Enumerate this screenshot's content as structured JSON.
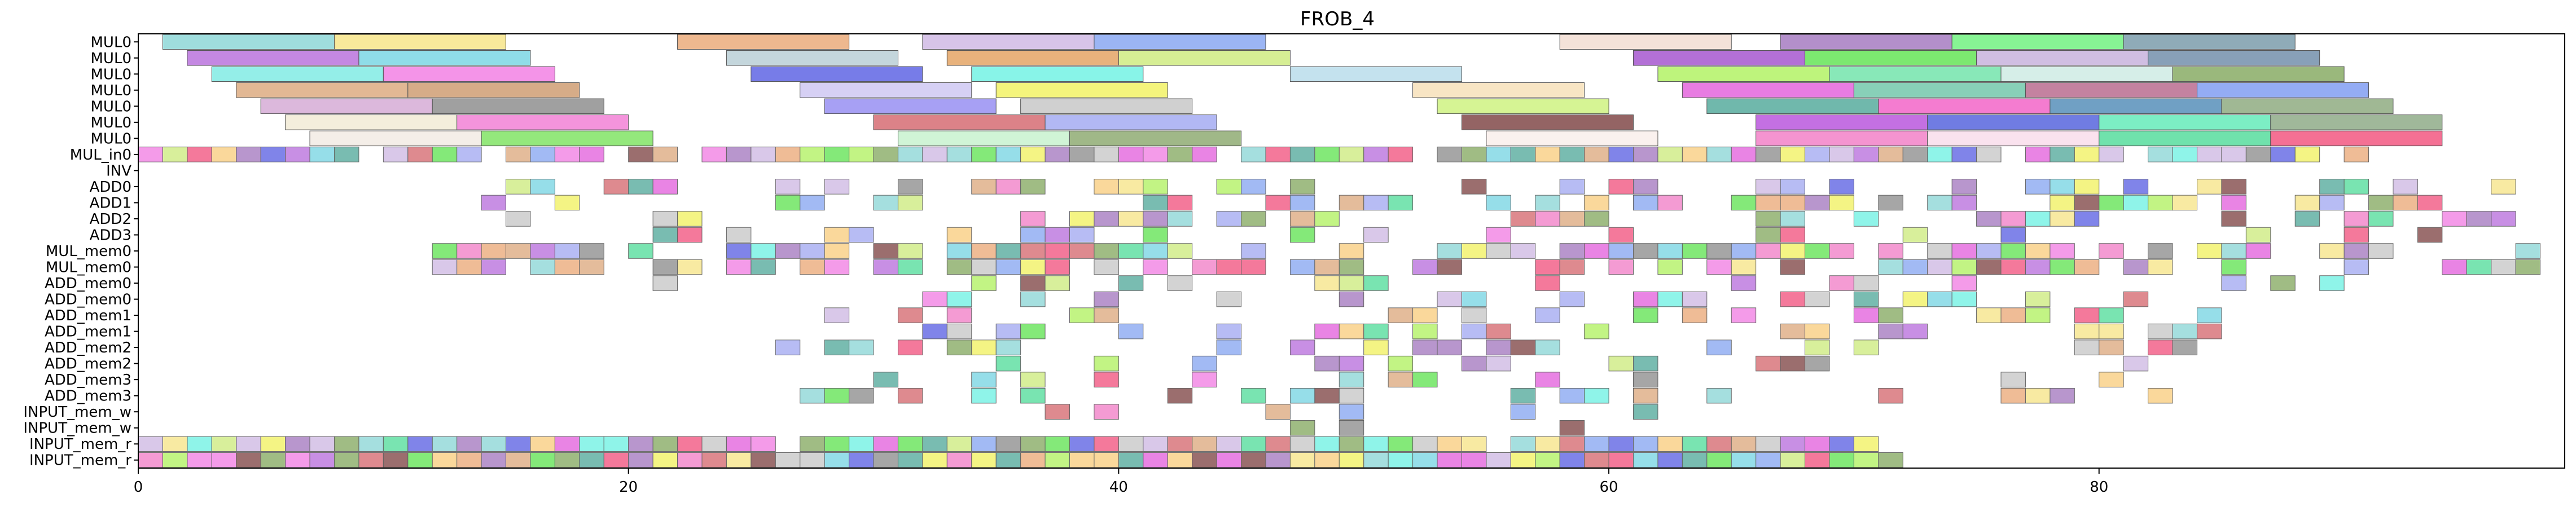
{
  "chart_data": {
    "type": "gantt",
    "title": "FROB_4",
    "xlabel": "",
    "ylabel": "",
    "xlim": [
      0,
      99
    ],
    "x_ticks": [
      0,
      20,
      40,
      60,
      80
    ],
    "x_tick_labels": [
      "0",
      "20",
      "40",
      "60",
      "80"
    ],
    "rows": [
      "MUL0",
      "MUL0",
      "MUL0",
      "MUL0",
      "MUL0",
      "MUL0",
      "MUL0",
      "MUL_in0",
      "INV",
      "ADD0",
      "ADD1",
      "ADD2",
      "ADD3",
      "MUL_mem0",
      "MUL_mem0",
      "ADD_mem0",
      "ADD_mem0",
      "ADD_mem1",
      "ADD_mem1",
      "ADD_mem2",
      "ADD_mem2",
      "ADD_mem3",
      "ADD_mem3",
      "INPUT_mem_w",
      "INPUT_mem_w",
      "INPUT_mem_r",
      "INPUT_mem_r"
    ],
    "bars": [
      {
        "row": 0,
        "start": 1,
        "end": 8,
        "color": "#7fd1d1"
      },
      {
        "row": 0,
        "start": 8,
        "end": 15,
        "color": "#f5e17a"
      },
      {
        "row": 0,
        "start": 22,
        "end": 29,
        "color": "#e8a06a"
      },
      {
        "row": 0,
        "start": 32,
        "end": 39,
        "color": "#c9b0e0"
      },
      {
        "row": 0,
        "start": 39,
        "end": 46,
        "color": "#7a9cf0"
      },
      {
        "row": 0,
        "start": 58,
        "end": 65,
        "color": "#f0d8cc"
      },
      {
        "row": 0,
        "start": 67,
        "end": 74,
        "color": "#9a6ab8"
      },
      {
        "row": 0,
        "start": 74,
        "end": 81,
        "color": "#5ff070"
      },
      {
        "row": 0,
        "start": 81,
        "end": 88,
        "color": "#6a8fa0"
      },
      {
        "row": 1,
        "start": 2,
        "end": 9,
        "color": "#b060d8"
      },
      {
        "row": 1,
        "start": 9,
        "end": 16,
        "color": "#6ad0e0"
      },
      {
        "row": 1,
        "start": 24,
        "end": 31,
        "color": "#b0c8d0"
      },
      {
        "row": 1,
        "start": 33,
        "end": 40,
        "color": "#e09850"
      },
      {
        "row": 1,
        "start": 40,
        "end": 47,
        "color": "#c8e870"
      },
      {
        "row": 1,
        "start": 61,
        "end": 68,
        "color": "#9a40c8"
      },
      {
        "row": 1,
        "start": 68,
        "end": 75,
        "color": "#50e040"
      },
      {
        "row": 1,
        "start": 75,
        "end": 82,
        "color": "#c0a8d8"
      },
      {
        "row": 1,
        "start": 82,
        "end": 89,
        "color": "#6080a0"
      },
      {
        "row": 2,
        "start": 3,
        "end": 10,
        "color": "#70e8e0"
      },
      {
        "row": 2,
        "start": 10,
        "end": 17,
        "color": "#f070e0"
      },
      {
        "row": 2,
        "start": 25,
        "end": 32,
        "color": "#4a50e0"
      },
      {
        "row": 2,
        "start": 34,
        "end": 41,
        "color": "#60f0e0"
      },
      {
        "row": 2,
        "start": 47,
        "end": 54,
        "color": "#b0d8e8"
      },
      {
        "row": 2,
        "start": 62,
        "end": 69,
        "color": "#a8f050"
      },
      {
        "row": 2,
        "start": 69,
        "end": 76,
        "color": "#60e0a0"
      },
      {
        "row": 2,
        "start": 76,
        "end": 83,
        "color": "#c8e8e0"
      },
      {
        "row": 2,
        "start": 83,
        "end": 90,
        "color": "#78a050"
      },
      {
        "row": 3,
        "start": 4,
        "end": 11,
        "color": "#d8a070"
      },
      {
        "row": 3,
        "start": 11,
        "end": 18,
        "color": "#c89060"
      },
      {
        "row": 3,
        "start": 27,
        "end": 34,
        "color": "#c8c0f0"
      },
      {
        "row": 3,
        "start": 35,
        "end": 42,
        "color": "#f0f050"
      },
      {
        "row": 3,
        "start": 52,
        "end": 59,
        "color": "#f5dcb0"
      },
      {
        "row": 3,
        "start": 63,
        "end": 70,
        "color": "#e050d8"
      },
      {
        "row": 3,
        "start": 70,
        "end": 77,
        "color": "#60c0a0"
      },
      {
        "row": 3,
        "start": 77,
        "end": 84,
        "color": "#b05880"
      },
      {
        "row": 3,
        "start": 84,
        "end": 91,
        "color": "#7090f0"
      },
      {
        "row": 4,
        "start": 5,
        "end": 12,
        "color": "#d0a0d0"
      },
      {
        "row": 4,
        "start": 12,
        "end": 19,
        "color": "#808080"
      },
      {
        "row": 4,
        "start": 28,
        "end": 35,
        "color": "#8a80f0"
      },
      {
        "row": 4,
        "start": 36,
        "end": 43,
        "color": "#c0c0c0"
      },
      {
        "row": 4,
        "start": 53,
        "end": 60,
        "color": "#c8f070"
      },
      {
        "row": 4,
        "start": 64,
        "end": 71,
        "color": "#40a090"
      },
      {
        "row": 4,
        "start": 71,
        "end": 78,
        "color": "#f050c0"
      },
      {
        "row": 4,
        "start": 78,
        "end": 85,
        "color": "#4080b0"
      },
      {
        "row": 4,
        "start": 85,
        "end": 92,
        "color": "#80a070"
      },
      {
        "row": 5,
        "start": 6,
        "end": 13,
        "color": "#f0e8d0"
      },
      {
        "row": 5,
        "start": 13,
        "end": 20,
        "color": "#f070d0"
      },
      {
        "row": 5,
        "start": 30,
        "end": 37,
        "color": "#d05860"
      },
      {
        "row": 5,
        "start": 37,
        "end": 44,
        "color": "#98a0f0"
      },
      {
        "row": 5,
        "start": 54,
        "end": 61,
        "color": "#703030"
      },
      {
        "row": 5,
        "start": 66,
        "end": 73,
        "color": "#b040d8"
      },
      {
        "row": 5,
        "start": 73,
        "end": 80,
        "color": "#4050d8"
      },
      {
        "row": 5,
        "start": 80,
        "end": 87,
        "color": "#50e8b0"
      },
      {
        "row": 5,
        "start": 87,
        "end": 94,
        "color": "#80a078"
      },
      {
        "row": 6,
        "start": 7,
        "end": 14,
        "color": "#f0e8e0"
      },
      {
        "row": 6,
        "start": 14,
        "end": 21,
        "color": "#70e050"
      },
      {
        "row": 6,
        "start": 31,
        "end": 38,
        "color": "#c0f0c8"
      },
      {
        "row": 6,
        "start": 38,
        "end": 45,
        "color": "#80a060"
      },
      {
        "row": 6,
        "start": 55,
        "end": 62,
        "color": "#f8ece8"
      },
      {
        "row": 6,
        "start": 66,
        "end": 73,
        "color": "#f070c0"
      },
      {
        "row": 6,
        "start": 73,
        "end": 80,
        "color": "#f8d8e8"
      },
      {
        "row": 6,
        "start": 80,
        "end": 87,
        "color": "#40d890"
      },
      {
        "row": 6,
        "start": 87,
        "end": 94,
        "color": "#f04070"
      }
    ]
  }
}
